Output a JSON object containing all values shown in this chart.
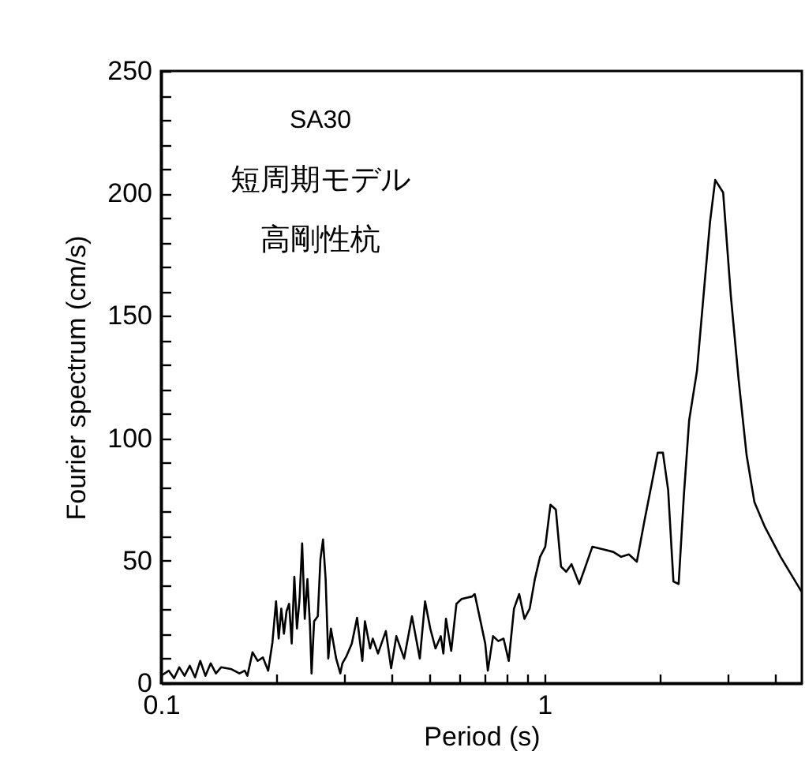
{
  "chart_data": {
    "type": "line",
    "xlabel": "Period (s)",
    "ylabel": "Fourier spectrum (cm/s)",
    "annotations": [
      "SA30",
      "短周期モデル",
      "高剛性杭"
    ],
    "log": "x",
    "xlim": [
      0.1,
      4.7
    ],
    "ylim": [
      0,
      250
    ],
    "xticks": [
      0.1,
      {
        "value": 0.2,
        "label": null
      },
      {
        "value": 0.3,
        "label": null
      },
      {
        "value": 0.4,
        "label": null
      },
      {
        "value": 0.5,
        "label": null
      },
      {
        "value": 0.6,
        "label": null
      },
      {
        "value": 0.7,
        "label": null
      },
      {
        "value": 0.8,
        "label": null
      },
      {
        "value": 0.9,
        "label": null
      },
      1,
      {
        "value": 2,
        "label": null
      },
      {
        "value": 3,
        "label": null
      },
      {
        "value": 4,
        "label": null
      }
    ],
    "yticks": [
      0,
      {
        "value": 10,
        "label": null
      },
      {
        "value": 20,
        "label": null
      },
      {
        "value": 30,
        "label": null
      },
      {
        "value": 40,
        "label": null
      },
      50,
      {
        "value": 60,
        "label": null
      },
      {
        "value": 70,
        "label": null
      },
      {
        "value": 80,
        "label": null
      },
      {
        "value": 90,
        "label": null
      },
      100,
      {
        "value": 110,
        "label": null
      },
      {
        "value": 120,
        "label": null
      },
      {
        "value": 130,
        "label": null
      },
      {
        "value": 140,
        "label": null
      },
      150,
      {
        "value": 160,
        "label": null
      },
      {
        "value": 170,
        "label": null
      },
      {
        "value": 180,
        "label": null
      },
      {
        "value": 190,
        "label": null
      },
      200,
      {
        "value": 210,
        "label": null
      },
      {
        "value": 220,
        "label": null
      },
      {
        "value": 230,
        "label": null
      },
      {
        "value": 240,
        "label": null
      },
      250
    ],
    "marker": "none",
    "line_style": "solid",
    "x": [
      0.1,
      0.1048,
      0.1082,
      0.1116,
      0.1152,
      0.1189,
      0.1227,
      0.1266,
      0.1306,
      0.1348,
      0.1391,
      0.1435,
      0.1528,
      0.1602,
      0.1653,
      0.168,
      0.1733,
      0.1788,
      0.1845,
      0.1904,
      0.1953,
      0.1996,
      0.2028,
      0.206,
      0.2093,
      0.2126,
      0.2159,
      0.2193,
      0.2228,
      0.2263,
      0.2299,
      0.2335,
      0.2372,
      0.241,
      0.2448,
      0.2471,
      0.2509,
      0.2565,
      0.2606,
      0.2647,
      0.2689,
      0.2732,
      0.2775,
      0.2864,
      0.2937,
      0.2974,
      0.3049,
      0.3147,
      0.3248,
      0.3352,
      0.3405,
      0.3513,
      0.3569,
      0.3683,
      0.3861,
      0.3985,
      0.4112,
      0.4309,
      0.4517,
      0.4735,
      0.4886,
      0.5042,
      0.5203,
      0.537,
      0.5455,
      0.5541,
      0.5718,
      0.59,
      0.6087,
      0.6482,
      0.6586,
      0.6797,
      0.7014,
      0.7125,
      0.7353,
      0.7587,
      0.7831,
      0.8078,
      0.8337,
      0.8602,
      0.8878,
      0.916,
      0.9451,
      0.9752,
      1.006,
      1.038,
      1.072,
      1.106,
      1.141,
      1.178,
      1.234,
      1.274,
      1.335,
      1.422,
      1.514,
      1.587,
      1.663,
      1.744,
      1.828,
      1.916,
      1.977,
      2.04,
      2.105,
      2.173,
      2.242,
      2.314,
      2.388,
      2.503,
      2.623,
      2.707,
      2.793,
      2.929,
      3.069,
      3.217,
      3.373,
      3.535,
      3.764,
      4.137,
      4.69
    ],
    "series": [
      {
        "color": "#000000",
        "values": [
          3.0,
          5.1,
          2.0,
          6.5,
          3.0,
          7.1,
          2.4,
          9.1,
          3.0,
          8.1,
          4.0,
          6.5,
          5.7,
          4.0,
          5.1,
          3.0,
          12.6,
          9.1,
          10.5,
          5.1,
          16.6,
          33.4,
          18.2,
          30.4,
          20.2,
          29.4,
          32.4,
          16.2,
          43.5,
          22.3,
          34.4,
          57.1,
          26.3,
          42.5,
          23.3,
          4.0,
          25.3,
          27.3,
          50.6,
          58.7,
          42.5,
          10.1,
          22.3,
          10.1,
          4.0,
          8.1,
          11.1,
          16.2,
          26.7,
          9.1,
          25.3,
          14.2,
          18.2,
          12.1,
          21.3,
          6.1,
          19.2,
          10.1,
          27.3,
          10.1,
          33.4,
          22.3,
          14.2,
          19.2,
          12.1,
          26.3,
          13.2,
          32.4,
          34.4,
          35.4,
          36.4,
          26.3,
          16.2,
          5.1,
          19.2,
          17.2,
          18.2,
          9.1,
          30.4,
          36.4,
          26.3,
          30.4,
          42.5,
          51.6,
          55.7,
          72.9,
          70.9,
          47.6,
          45.5,
          48.6,
          40.5,
          46.6,
          55.7,
          54.7,
          53.6,
          51.6,
          52.6,
          49.6,
          66.8,
          83.0,
          94.1,
          94.1,
          78.9,
          41.5,
          40.5,
          76.9,
          107.3,
          127.5,
          164.0,
          188.3,
          205.5,
          200.4,
          157.9,
          123.5,
          93.1,
          73.9,
          63.8,
          51.6,
          37.4
        ]
      }
    ]
  }
}
